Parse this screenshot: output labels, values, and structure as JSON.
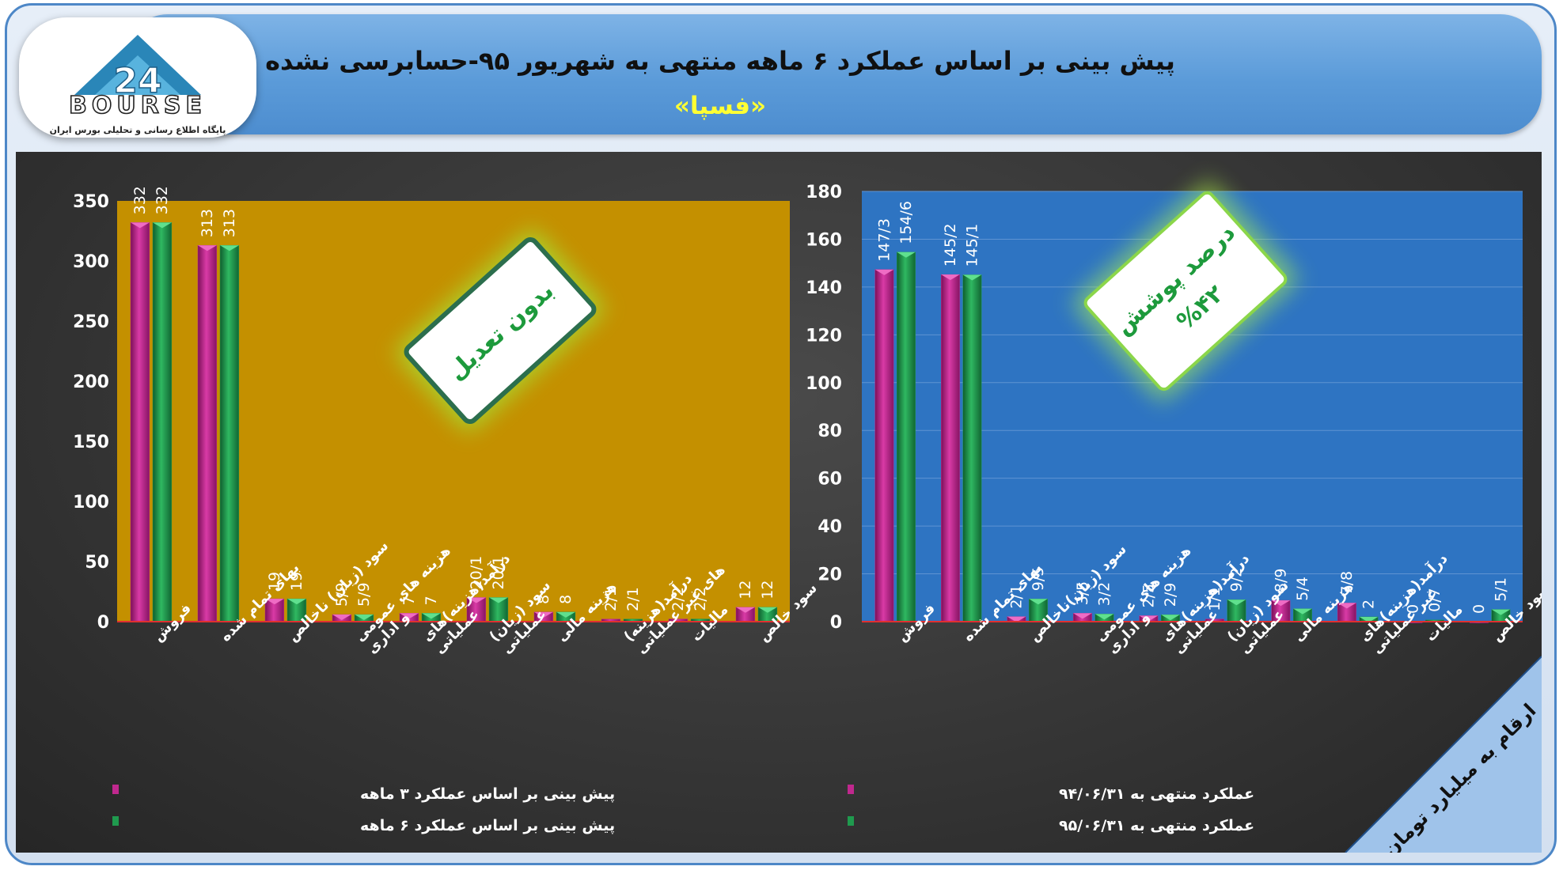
{
  "header": {
    "title": "پیش بینی بر اساس عملکرد ۶ ماهه منتهی به شهریور ۹۵-حسابرسی نشده",
    "company": "«فسپا»"
  },
  "logo": {
    "word": "BOURSE",
    "number": "24",
    "tagline": "پایگاه اطلاع رسانی و تحلیلی بورس ایران"
  },
  "badges": {
    "left": "بدون تعدیل",
    "right_line1": "درصد پوشش",
    "right_line2": "%۴۲"
  },
  "corner_note": "ارقام به میلیارد تومان",
  "colors": {
    "series_magenta": "#c0288e",
    "series_green": "#1f9a4e",
    "left_plot_bg": "#c49000",
    "right_plot_bg": "#2e74c2",
    "baseline": "#e03030",
    "title_yellow": "#ffff33"
  },
  "chart_data": [
    {
      "id": "left",
      "type": "bar",
      "ylim": [
        0,
        350
      ],
      "yticks": [
        0,
        50,
        100,
        150,
        200,
        250,
        300,
        350
      ],
      "grid": false,
      "legend_position": "bottom-left",
      "categories": [
        [
          "فروش"
        ],
        [
          "بهای تمام شده"
        ],
        [
          "سود (زیان) ناخالص"
        ],
        [
          "هزینه های عمومی",
          "و اداری"
        ],
        [
          "درآمد(هزینه)های",
          "عملیاتی"
        ],
        [
          "سود (زیان)",
          "عملیاتی"
        ],
        [
          "هزینه مالی"
        ],
        [
          "درآمد(هزینه)",
          "های غیر عملیاتی"
        ],
        [
          "مالیات"
        ],
        [
          "سود خالص"
        ]
      ],
      "series": [
        {
          "name": "پیش بینی بر اساس عملکرد ۳ ماهه",
          "values": [
            332,
            313,
            19,
            5.9,
            7,
            20.1,
            8,
            2.1,
            2.2,
            12
          ],
          "labels": [
            "332",
            "313",
            "19",
            "5/9",
            "7",
            "20/1",
            "8",
            "2/1",
            "2/2",
            "12"
          ]
        },
        {
          "name": "پیش بینی بر اساس عملکرد ۶ ماهه",
          "values": [
            332,
            313,
            19,
            5.9,
            7,
            20.1,
            8,
            2.1,
            2.2,
            12
          ],
          "labels": [
            "332",
            "313",
            "19",
            "5/9",
            "7",
            "20/1",
            "8",
            "2/1",
            "2/2",
            "12"
          ]
        }
      ]
    },
    {
      "id": "right",
      "type": "bar",
      "ylim": [
        0,
        180
      ],
      "yticks": [
        0,
        20,
        40,
        60,
        80,
        100,
        120,
        140,
        160,
        180
      ],
      "grid": true,
      "legend_position": "bottom-left",
      "categories": [
        [
          "فروش"
        ],
        [
          "بهای تمام شده"
        ],
        [
          "سود (زیان)ناخالص"
        ],
        [
          "هزینه های عمومی",
          "و اداری"
        ],
        [
          "درآمد(هزینه)های",
          "عملیاتی"
        ],
        [
          "سود (زیان)",
          "عملیاتی"
        ],
        [
          "هزینه مالی"
        ],
        [
          "درآمد(هزینه)های",
          "غیر عملیاتی"
        ],
        [
          "مالیات"
        ],
        [
          "سود خالص"
        ]
      ],
      "series": [
        {
          "name": "عملکرد منتهی به ۹۴/۰۶/۳۱",
          "values": [
            147.3,
            145.2,
            2.1,
            3.5,
            2.5,
            1.1,
            8.9,
            7.8,
            0,
            0
          ],
          "labels": [
            "147/3",
            "145/2",
            "2/1",
            "3/5",
            "2/5",
            "1/1",
            "8/9",
            "7/8",
            "0",
            "0"
          ]
        },
        {
          "name": "عملکرد منتهی به ۹۵/۰۶/۳۱",
          "values": [
            154.6,
            145.1,
            9.5,
            3.2,
            2.9,
            9.2,
            5.4,
            2,
            0.7,
            5.1
          ],
          "labels": [
            "154/6",
            "145/1",
            "9/5",
            "3/2",
            "2/9",
            "9/2",
            "5/4",
            "2",
            "0/7",
            "5/1"
          ]
        }
      ]
    }
  ]
}
